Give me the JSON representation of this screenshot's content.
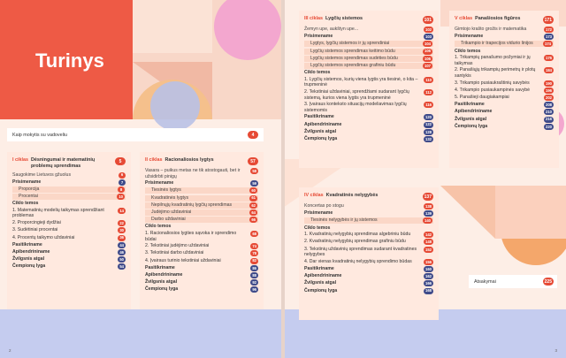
{
  "title": "Turinys",
  "intro": {
    "label": "Kaip mokytis su vadoveliu",
    "page": "4"
  },
  "chapters": [
    {
      "cycle": "I ciklas",
      "title": "Dėsningumai ir matematinių problemų sprendimas",
      "page": "5",
      "rows": [
        {
          "label": "Saugokime Lietuvos gžuolus",
          "page": "6",
          "type": "sub"
        },
        {
          "label": "Prisimename",
          "page": "7",
          "type": "sec"
        },
        {
          "label": "Proporcija",
          "page": "8",
          "type": "indent"
        },
        {
          "label": "Procentai",
          "page": "10",
          "type": "indent"
        },
        {
          "label": "Ciklo temos",
          "page": "",
          "type": "sec"
        },
        {
          "label": "1. Matematinių modelių taikymas sprendžiant problemas",
          "page": "14",
          "type": "item"
        },
        {
          "label": "2. Proporcingieji dydžiai",
          "page": "22",
          "type": "item"
        },
        {
          "label": "3. Sudėtiniai procentai",
          "page": "30",
          "type": "item"
        },
        {
          "label": "4. Procentų taikymo uždaviniai",
          "page": "36",
          "type": "item"
        },
        {
          "label": "Pasitikriname",
          "page": "44",
          "type": "sec"
        },
        {
          "label": "Apibendrininame",
          "page": "46",
          "type": "sec"
        },
        {
          "label": "Žvilgsnis atgal",
          "page": "50",
          "type": "sec"
        },
        {
          "label": "Čempionų lyga",
          "page": "54",
          "type": "sec"
        }
      ]
    },
    {
      "cycle": "II ciklas",
      "title": "Racionaliosios lygtys",
      "page": "57",
      "rows": [
        {
          "label": "Vasara – puikus metas ne tik atostogauti, bet ir užsidirbti pinigų",
          "page": "58",
          "type": "sub"
        },
        {
          "label": "Prisimename",
          "page": "59",
          "type": "sec"
        },
        {
          "label": "Tiesinės lygtys",
          "page": "60",
          "type": "indent"
        },
        {
          "label": "Kvadratinės lygtys",
          "page": "61",
          "type": "indent"
        },
        {
          "label": "Nepilnųjų kvadratinių lygčių sprendimas",
          "page": "62",
          "type": "indent"
        },
        {
          "label": "Judėjimo uždaviniai",
          "page": "64",
          "type": "indent"
        },
        {
          "label": "Darbo uždaviniai",
          "page": "66",
          "type": "indent"
        },
        {
          "label": "Ciklo temos",
          "page": "",
          "type": "sec"
        },
        {
          "label": "1. Racionaliosios lygties sąvoka ir sprendimo būdai",
          "page": "68",
          "type": "item"
        },
        {
          "label": "2. Tekstiniai judėjimo uždaviniai",
          "page": "74",
          "type": "item"
        },
        {
          "label": "3. Tekstiniai darbo uždaviniai",
          "page": "78",
          "type": "item"
        },
        {
          "label": "4. Įvairaus turinio tekstiniai uždaviniai",
          "page": "82",
          "type": "item"
        },
        {
          "label": "Pasitikriname",
          "page": "86",
          "type": "sec"
        },
        {
          "label": "Apibendrininame",
          "page": "88",
          "type": "sec"
        },
        {
          "label": "Žvilgsnis atgal",
          "page": "92",
          "type": "sec"
        },
        {
          "label": "Čempionų lyga",
          "page": "96",
          "type": "sec"
        }
      ]
    },
    {
      "cycle": "III ciklas",
      "title": "Lygčių sistemos",
      "page": "101",
      "rows": [
        {
          "label": "Žemyn upe, aukštyn upe...",
          "page": "102",
          "type": "sub"
        },
        {
          "label": "Prisimename",
          "page": "103",
          "type": "sec"
        },
        {
          "label": "Lygtys, lygčių sistemos ir jų sprendiniai",
          "page": "104",
          "type": "indent"
        },
        {
          "label": "Lygčių sistemos sprendimas keitimo būdu",
          "page": "105",
          "type": "indent"
        },
        {
          "label": "Lygčių sistemos sprendimas sudėties būdu",
          "page": "106",
          "type": "indent"
        },
        {
          "label": "Lygčių sistemos sprendimas grafiniu būdu",
          "page": "107",
          "type": "indent"
        },
        {
          "label": "Ciklo temos",
          "page": "",
          "type": "sec"
        },
        {
          "label": "1. Lygčių sistemos, kurių viena lygtis yra tiesinė, o kita – trupmeninė",
          "page": "110",
          "type": "item"
        },
        {
          "label": "2. Tekstiniai uždaviniai, sprendžiami sudarant lygčių sistemą, kurios viena lygtis yra trupmeninė",
          "page": "112",
          "type": "item"
        },
        {
          "label": "3. Įvairaus konteksto situacijų modeliavimas lygčių sistemomis",
          "page": "116",
          "type": "item"
        },
        {
          "label": "Pasitikriname",
          "page": "120",
          "type": "sec"
        },
        {
          "label": "Apibendrininame",
          "page": "122",
          "type": "sec"
        },
        {
          "label": "Žvilgsnis atgal",
          "page": "128",
          "type": "sec"
        },
        {
          "label": "Čempionų lyga",
          "page": "132",
          "type": "sec"
        }
      ]
    },
    {
      "cycle": "IV ciklas",
      "title": "Kvadratinės nelygybės",
      "page": "137",
      "rows": [
        {
          "label": "Koncertas po stogu",
          "page": "138",
          "type": "sub"
        },
        {
          "label": "Prisimename",
          "page": "139",
          "type": "sec"
        },
        {
          "label": "Tiesinės nelygybės ir jų sistemos",
          "page": "140",
          "type": "indent"
        },
        {
          "label": "Ciklo temos",
          "page": "",
          "type": "sec"
        },
        {
          "label": "1. Kvadratinių nelygybių sprendimas algebriniu būdu",
          "page": "142",
          "type": "item"
        },
        {
          "label": "2. Kvadratinių nelygybių sprendimas grafiniu būdu",
          "page": "148",
          "type": "item"
        },
        {
          "label": "3. Tekstinių uždavinių sprendimas sudarant kvadratines nelygybes",
          "page": "152",
          "type": "item"
        },
        {
          "label": "4. Dar vienas kvadratinių nelygybių sprendimo būdas",
          "page": "156",
          "type": "item"
        },
        {
          "label": "Pasitikriname",
          "page": "160",
          "type": "sec"
        },
        {
          "label": "Apibendrininame",
          "page": "162",
          "type": "sec"
        },
        {
          "label": "Žvilgsnis atgal",
          "page": "166",
          "type": "sec"
        },
        {
          "label": "Čempionų lyga",
          "page": "168",
          "type": "sec"
        }
      ]
    },
    {
      "cycle": "V ciklas",
      "title": "Panašiosios figūros",
      "page": "171",
      "rows": [
        {
          "label": "Gimtojo krašto grožis ir matematika",
          "page": "172",
          "type": "sub"
        },
        {
          "label": "Prisimename",
          "page": "173",
          "type": "sec"
        },
        {
          "label": "Trikampio ir trapecijos vidurio linijos",
          "page": "174",
          "type": "indent"
        },
        {
          "label": "Ciklo temos",
          "page": "",
          "type": "sec"
        },
        {
          "label": "1. Trikampių panašumo požymiai ir jų taikymas",
          "page": "176",
          "type": "item"
        },
        {
          "label": "2. Panašiųjų trikampių perimetrų ir plotų santykis",
          "page": "184",
          "type": "item"
        },
        {
          "label": "3. Trikampio pusiaukraštinių savybės",
          "page": "190",
          "type": "item"
        },
        {
          "label": "4. Trikampio pusiaukampinės savybė",
          "page": "196",
          "type": "item"
        },
        {
          "label": "5. Panašieji daugiakampiai",
          "page": "202",
          "type": "item"
        },
        {
          "label": "Pasitikriname",
          "page": "208",
          "type": "sec"
        },
        {
          "label": "Apibendrininame",
          "page": "210",
          "type": "sec"
        },
        {
          "label": "Žvilgsnis atgal",
          "page": "216",
          "type": "sec"
        },
        {
          "label": "Čempionų lyga",
          "page": "220",
          "type": "sec"
        }
      ]
    }
  ],
  "answers": {
    "label": "Atsakymai",
    "page": "225"
  },
  "page_numbers": {
    "left": "2",
    "right": "3"
  },
  "colors": {
    "accent": "#e64a35",
    "badge_dark": "#3f4b8a",
    "panel": "#ffe9df"
  }
}
